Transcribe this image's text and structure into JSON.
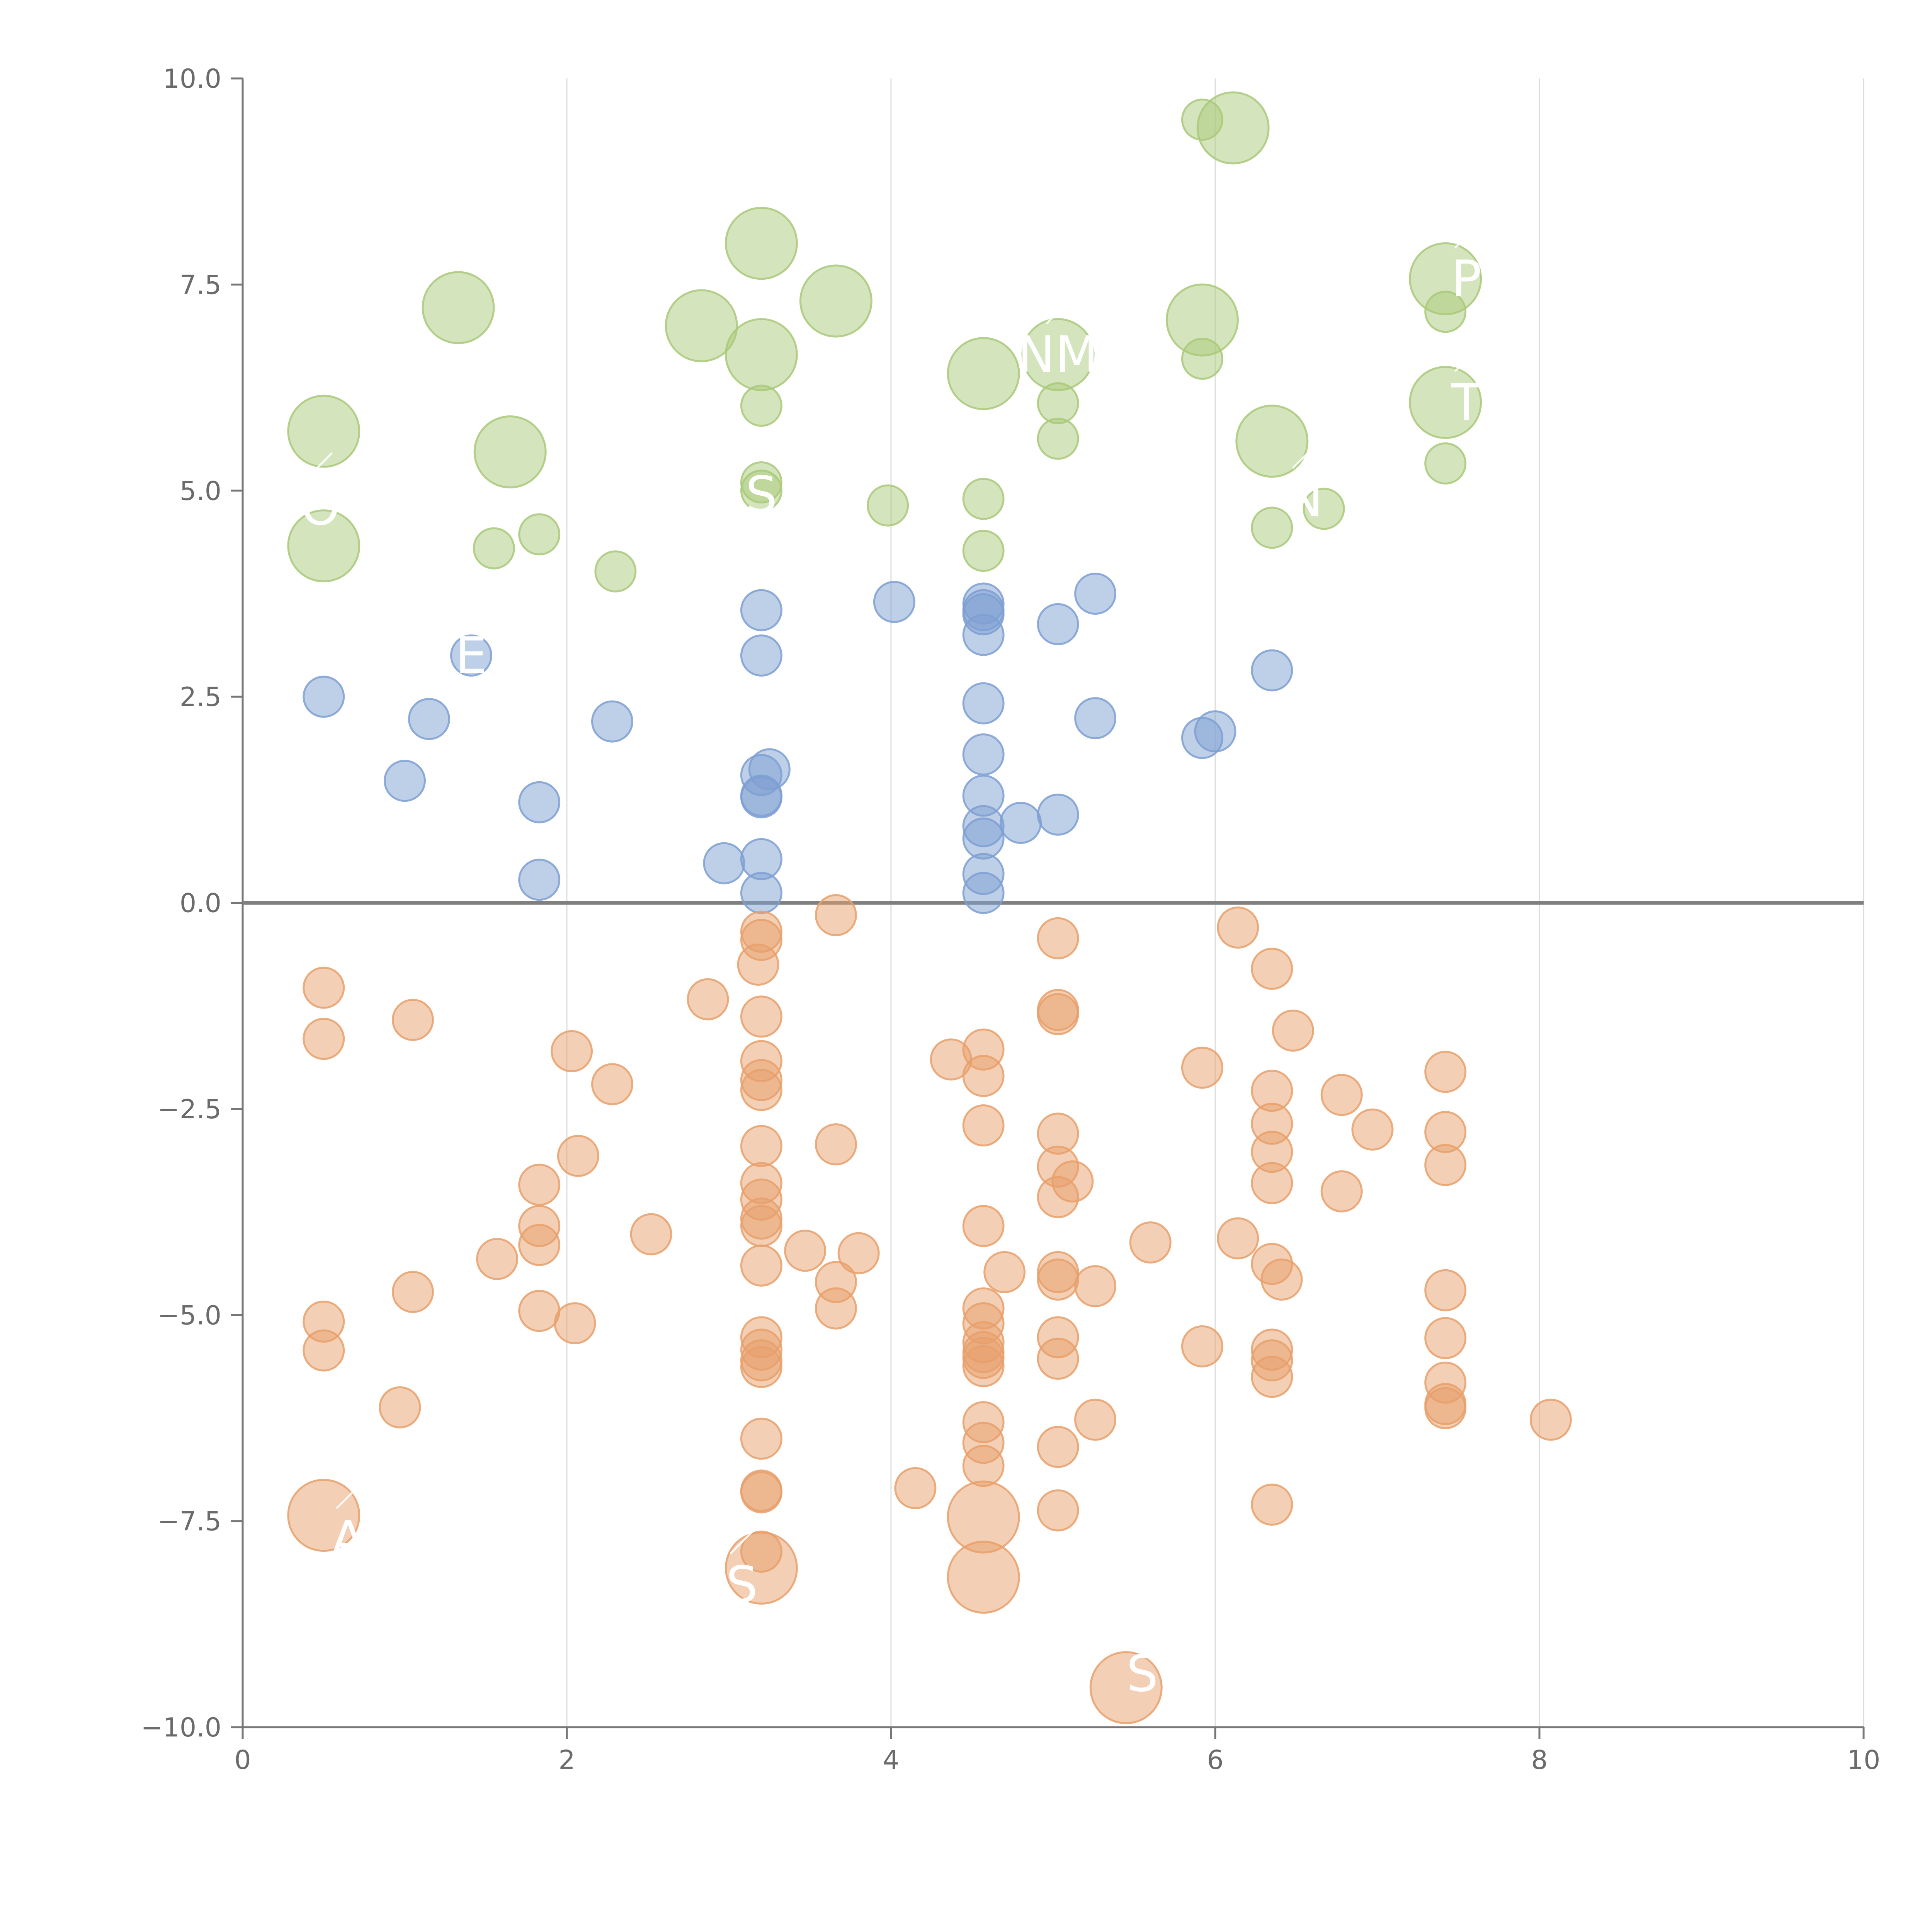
{
  "chart_data": {
    "type": "scatter",
    "title": "",
    "xlabel": "",
    "ylabel": "",
    "xlim": [
      0,
      10
    ],
    "ylim": [
      -10,
      10
    ],
    "grid": "vertical",
    "x_ticks": [
      "0",
      "2",
      "4",
      "6",
      "8",
      "10"
    ],
    "x_tick_values": [
      0,
      2,
      4,
      6,
      8,
      10
    ],
    "y_ticks": [
      "10.0",
      "7.5",
      "5.0",
      "2.5",
      "0.0",
      "−2.5",
      "−5.0",
      "−7.5",
      "−10.0"
    ],
    "y_tick_values": [
      10,
      7.5,
      5,
      2.5,
      0,
      -2.5,
      -5,
      -7.5,
      -10
    ],
    "colors": {
      "green": "#a9c97a",
      "blue": "#7e9fd2",
      "orange": "#e8a06b"
    },
    "series": [
      {
        "name": "green",
        "points": [
          [
            0.5,
            5.72,
            2
          ],
          [
            0.5,
            4.33,
            2
          ],
          [
            1.33,
            7.22,
            2
          ],
          [
            1.65,
            5.47,
            2
          ],
          [
            1.55,
            4.3,
            1
          ],
          [
            1.83,
            4.47,
            1
          ],
          [
            2.3,
            4.02,
            1
          ],
          [
            2.83,
            7.0,
            2
          ],
          [
            3.2,
            8.0,
            2
          ],
          [
            3.2,
            6.65,
            2
          ],
          [
            3.2,
            6.03,
            1
          ],
          [
            3.2,
            5.1,
            1
          ],
          [
            3.2,
            5.0,
            1
          ],
          [
            3.66,
            7.3,
            2
          ],
          [
            3.98,
            4.82,
            1
          ],
          [
            4.57,
            6.42,
            2
          ],
          [
            4.57,
            4.9,
            1
          ],
          [
            4.57,
            4.27,
            1
          ],
          [
            5.03,
            6.65,
            2
          ],
          [
            5.03,
            6.06,
            1
          ],
          [
            5.03,
            5.63,
            1
          ],
          [
            5.92,
            9.5,
            1
          ],
          [
            6.11,
            9.4,
            2
          ],
          [
            5.92,
            7.07,
            2
          ],
          [
            5.92,
            6.6,
            1
          ],
          [
            6.35,
            5.6,
            2
          ],
          [
            6.35,
            4.55,
            1
          ],
          [
            6.67,
            4.78,
            1
          ],
          [
            7.42,
            7.57,
            2
          ],
          [
            7.42,
            7.17,
            1
          ],
          [
            7.42,
            6.07,
            2
          ],
          [
            7.42,
            5.33,
            1
          ]
        ]
      },
      {
        "name": "blue",
        "points": [
          [
            0.5,
            2.5,
            1
          ],
          [
            1.0,
            1.48,
            1
          ],
          [
            1.15,
            2.23,
            1
          ],
          [
            1.41,
            3.0,
            1
          ],
          [
            1.83,
            1.22,
            1
          ],
          [
            1.83,
            0.28,
            1
          ],
          [
            2.28,
            2.2,
            1
          ],
          [
            2.97,
            0.48,
            1
          ],
          [
            3.2,
            3.55,
            1
          ],
          [
            3.2,
            3.0,
            1
          ],
          [
            3.2,
            1.55,
            1
          ],
          [
            3.25,
            1.62,
            1
          ],
          [
            3.2,
            1.3,
            1
          ],
          [
            3.2,
            1.28,
            1
          ],
          [
            3.2,
            0.53,
            1
          ],
          [
            3.2,
            0.12,
            1
          ],
          [
            4.02,
            3.65,
            1
          ],
          [
            4.57,
            3.63,
            1
          ],
          [
            4.57,
            3.55,
            1
          ],
          [
            4.57,
            3.5,
            1
          ],
          [
            4.57,
            3.25,
            1
          ],
          [
            4.57,
            2.42,
            1
          ],
          [
            4.57,
            1.8,
            1
          ],
          [
            4.57,
            1.3,
            1
          ],
          [
            4.57,
            0.93,
            1
          ],
          [
            4.57,
            0.78,
            1
          ],
          [
            4.57,
            0.35,
            1
          ],
          [
            4.57,
            0.12,
            1
          ],
          [
            4.8,
            0.97,
            1
          ],
          [
            5.03,
            3.38,
            1
          ],
          [
            5.03,
            1.07,
            1
          ],
          [
            5.26,
            3.75,
            1
          ],
          [
            5.26,
            2.24,
            1
          ],
          [
            5.92,
            2.0,
            1
          ],
          [
            6.0,
            2.08,
            1
          ],
          [
            6.35,
            2.82,
            1
          ]
        ]
      },
      {
        "name": "orange",
        "points": [
          [
            0.5,
            -1.03,
            1
          ],
          [
            0.5,
            -1.65,
            1
          ],
          [
            0.5,
            -5.08,
            1
          ],
          [
            0.5,
            -5.43,
            1
          ],
          [
            0.5,
            -7.43,
            2
          ],
          [
            1.05,
            -1.42,
            1
          ],
          [
            1.05,
            -4.72,
            1
          ],
          [
            0.97,
            -6.12,
            1
          ],
          [
            1.57,
            -4.32,
            1
          ],
          [
            1.83,
            -3.42,
            1
          ],
          [
            1.83,
            -3.92,
            1
          ],
          [
            1.83,
            -4.15,
            1
          ],
          [
            1.83,
            -4.95,
            1
          ],
          [
            2.03,
            -1.8,
            1
          ],
          [
            2.07,
            -3.07,
            1
          ],
          [
            2.05,
            -5.1,
            1
          ],
          [
            2.28,
            -2.2,
            1
          ],
          [
            2.52,
            -4.02,
            1
          ],
          [
            2.87,
            -1.17,
            1
          ],
          [
            3.2,
            -0.35,
            1
          ],
          [
            3.2,
            -0.45,
            1
          ],
          [
            3.18,
            -0.75,
            1
          ],
          [
            3.2,
            -1.38,
            1
          ],
          [
            3.2,
            -1.92,
            1
          ],
          [
            3.2,
            -2.15,
            1
          ],
          [
            3.2,
            -2.27,
            1
          ],
          [
            3.2,
            -2.95,
            1
          ],
          [
            3.2,
            -3.4,
            1
          ],
          [
            3.2,
            -3.6,
            1
          ],
          [
            3.2,
            -3.83,
            1
          ],
          [
            3.2,
            -3.92,
            1
          ],
          [
            3.2,
            -4.4,
            1
          ],
          [
            3.2,
            -5.27,
            1
          ],
          [
            3.2,
            -5.42,
            1
          ],
          [
            3.2,
            -5.55,
            1
          ],
          [
            3.2,
            -5.63,
            1
          ],
          [
            3.2,
            -6.5,
            1
          ],
          [
            3.2,
            -7.13,
            1
          ],
          [
            3.2,
            -7.15,
            1
          ],
          [
            3.2,
            -7.87,
            1
          ],
          [
            3.2,
            -8.07,
            2
          ],
          [
            3.47,
            -4.22,
            1
          ],
          [
            3.66,
            -0.15,
            1
          ],
          [
            3.66,
            -2.93,
            1
          ],
          [
            3.66,
            -4.6,
            1
          ],
          [
            3.66,
            -4.92,
            1
          ],
          [
            3.8,
            -4.25,
            1
          ],
          [
            4.15,
            -7.1,
            1
          ],
          [
            4.37,
            -1.9,
            1
          ],
          [
            4.57,
            -1.78,
            1
          ],
          [
            4.57,
            -2.1,
            1
          ],
          [
            4.57,
            -2.7,
            1
          ],
          [
            4.57,
            -3.92,
            1
          ],
          [
            4.57,
            -4.92,
            1
          ],
          [
            4.57,
            -5.1,
            1
          ],
          [
            4.57,
            -5.33,
            1
          ],
          [
            4.57,
            -5.45,
            1
          ],
          [
            4.57,
            -5.52,
            1
          ],
          [
            4.57,
            -5.62,
            1
          ],
          [
            4.57,
            -6.3,
            1
          ],
          [
            4.57,
            -6.55,
            1
          ],
          [
            4.57,
            -6.83,
            1
          ],
          [
            4.57,
            -7.45,
            2
          ],
          [
            4.57,
            -8.18,
            2
          ],
          [
            4.7,
            -4.48,
            1
          ],
          [
            5.03,
            -0.43,
            1
          ],
          [
            5.03,
            -1.3,
            1
          ],
          [
            5.03,
            -1.35,
            1
          ],
          [
            5.03,
            -2.8,
            1
          ],
          [
            5.03,
            -3.2,
            1
          ],
          [
            5.03,
            -3.57,
            1
          ],
          [
            5.12,
            -3.38,
            1
          ],
          [
            5.03,
            -4.48,
            1
          ],
          [
            5.03,
            -4.57,
            1
          ],
          [
            5.26,
            -4.65,
            1
          ],
          [
            5.03,
            -5.27,
            1
          ],
          [
            5.03,
            -5.53,
            1
          ],
          [
            5.03,
            -6.6,
            1
          ],
          [
            5.26,
            -6.27,
            1
          ],
          [
            5.03,
            -7.37,
            1
          ],
          [
            5.45,
            -9.52,
            2
          ],
          [
            5.6,
            -4.12,
            1
          ],
          [
            5.92,
            -2.0,
            1
          ],
          [
            5.92,
            -5.38,
            1
          ],
          [
            6.14,
            -0.3,
            1
          ],
          [
            6.14,
            -4.07,
            1
          ],
          [
            6.35,
            -0.8,
            1
          ],
          [
            6.35,
            -2.28,
            1
          ],
          [
            6.35,
            -2.68,
            1
          ],
          [
            6.35,
            -3.02,
            1
          ],
          [
            6.35,
            -3.4,
            1
          ],
          [
            6.35,
            -4.38,
            1
          ],
          [
            6.35,
            -5.42,
            1
          ],
          [
            6.35,
            -5.55,
            1
          ],
          [
            6.35,
            -5.75,
            1
          ],
          [
            6.35,
            -7.3,
            1
          ],
          [
            6.41,
            -4.57,
            1
          ],
          [
            6.48,
            -1.55,
            1
          ],
          [
            6.78,
            -2.33,
            1
          ],
          [
            6.78,
            -3.5,
            1
          ],
          [
            6.97,
            -2.75,
            1
          ],
          [
            7.42,
            -2.05,
            1
          ],
          [
            7.42,
            -2.78,
            1
          ],
          [
            7.42,
            -3.18,
            1
          ],
          [
            7.42,
            -4.7,
            1
          ],
          [
            7.42,
            -5.28,
            1
          ],
          [
            7.42,
            -5.82,
            1
          ],
          [
            7.42,
            -6.08,
            1
          ],
          [
            7.42,
            -6.13,
            1
          ],
          [
            8.07,
            -6.27,
            1
          ]
        ]
      }
    ],
    "annotations": [
      {
        "text": "O",
        "x": 0.48,
        "y": 4.8
      },
      {
        "text": "E",
        "x": 1.41,
        "y": 3.0
      },
      {
        "text": "S",
        "x": 3.2,
        "y": 4.95
      },
      {
        "text": "NM",
        "x": 5.03,
        "y": 6.65
      },
      {
        "text": "N",
        "x": 6.55,
        "y": 4.9
      },
      {
        "text": "P",
        "x": 7.55,
        "y": 7.57
      },
      {
        "text": "T",
        "x": 7.55,
        "y": 6.07
      },
      {
        "text": "A",
        "x": 0.65,
        "y": -7.72
      },
      {
        "text": "S",
        "x": 3.08,
        "y": -8.27
      },
      {
        "text": "S",
        "x": 5.55,
        "y": -9.35
      }
    ]
  }
}
